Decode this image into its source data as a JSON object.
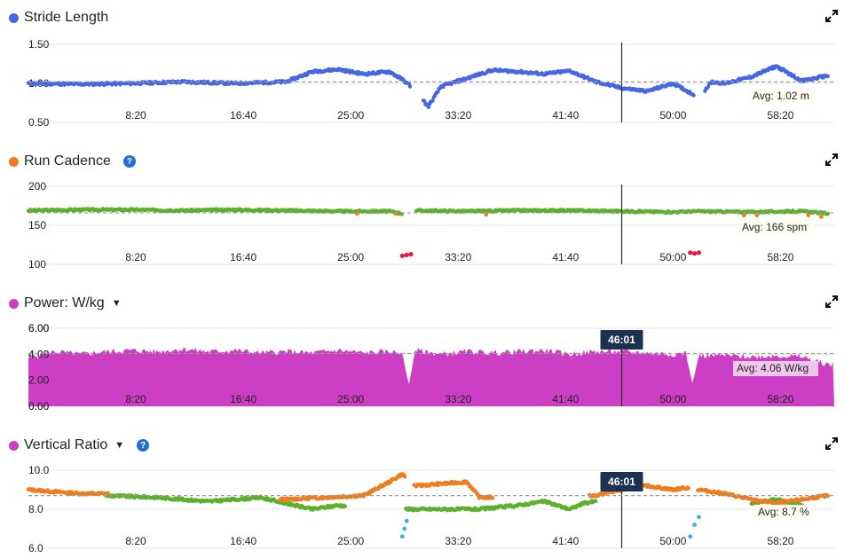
{
  "colors": {
    "stride": "#4666e6",
    "cadence_green": "#5bb02c",
    "cadence_orange": "#ee7d1f",
    "cadence_red": "#e8183d",
    "power": "#cc3ec3",
    "ratio_green": "#5bb02c",
    "ratio_orange": "#ee7d1f",
    "ratio_blue": "#35b3ee",
    "grid": "#e4e4e4",
    "avgline": "#9c9c9c",
    "cursor": "#2b2b2b",
    "marker_bg": "#1d3150",
    "help": "#1f6fd1"
  },
  "x_ticks": [
    "8:20",
    "16:40",
    "25:00",
    "33:20",
    "41:40",
    "50:00",
    "58:20"
  ],
  "cursor_time": "46:01",
  "panels": [
    {
      "id": "stride",
      "title": "Stride Length",
      "has_help": false,
      "has_dropdown": false,
      "expand_icon": "expand-icon",
      "y_ticks": [
        "1.50",
        "1.00",
        "0.50"
      ],
      "avg_label": "Avg: 1.02 m",
      "show_cursor_label": false
    },
    {
      "id": "cadence",
      "title": "Run Cadence",
      "has_help": true,
      "has_dropdown": false,
      "expand_icon": "expand-icon",
      "y_ticks": [
        "200",
        "150",
        "100"
      ],
      "avg_label": "Avg: 166 spm",
      "show_cursor_label": false
    },
    {
      "id": "power",
      "title": "Power: W/kg",
      "has_help": false,
      "has_dropdown": true,
      "expand_icon": "expand-icon",
      "y_ticks": [
        "6.00",
        "4.00",
        "2.00",
        "0.00"
      ],
      "avg_label": "Avg: 4.06 W/kg",
      "show_cursor_label": true
    },
    {
      "id": "ratio",
      "title": "Vertical Ratio",
      "has_help": true,
      "has_dropdown": true,
      "expand_icon": "expand-icon",
      "y_ticks": [
        "10.0",
        "8.0",
        "6.0"
      ],
      "avg_label": "Avg: 8.7 %",
      "show_cursor_label": true
    }
  ],
  "chart_data": [
    {
      "type": "scatter",
      "title": "Stride Length",
      "unit": "m",
      "x_unit": "time (mm:ss)",
      "ylim": [
        0.5,
        1.5
      ],
      "avg": 1.02,
      "series": [
        {
          "color": "#4666e6",
          "x_min": [
            0,
            4,
            8,
            12,
            16,
            20,
            22,
            24,
            26,
            28,
            29,
            30,
            31,
            32,
            36,
            38,
            40,
            42,
            44,
            46,
            48,
            50,
            52,
            53,
            54,
            56,
            58,
            60,
            62
          ],
          "x": [
            "0:00",
            "4:00",
            "8:00",
            "12:00",
            "16:00",
            "20:00",
            "22:00",
            "24:00",
            "26:00",
            "28:00",
            "29:00",
            "30:00",
            "31:00",
            "32:00",
            "36:00",
            "38:00",
            "40:00",
            "42:00",
            "44:00",
            "46:00",
            "48:00",
            "50:00",
            "52:00",
            "53:00",
            "54:00",
            "56:00",
            "58:00",
            "60:00",
            "62:00"
          ],
          "y": [
            1.0,
            0.99,
            1.0,
            1.02,
            1.0,
            1.02,
            1.15,
            1.18,
            1.12,
            1.15,
            1.05,
            0.92,
            0.7,
            0.96,
            1.17,
            1.15,
            1.12,
            1.16,
            1.02,
            0.94,
            0.9,
            1.0,
            0.82,
            1.02,
            1.0,
            1.08,
            1.22,
            1.03,
            1.1
          ]
        }
      ],
      "avg_label": "Avg: 1.02 m"
    },
    {
      "type": "scatter",
      "title": "Run Cadence",
      "unit": "spm",
      "ylim": [
        100,
        200
      ],
      "avg": 166,
      "series": [
        {
          "color": "#5bb02c",
          "x": [
            "0:00",
            "4:00",
            "8:00",
            "12:00",
            "16:00",
            "20:00",
            "24:00",
            "28:00",
            "29:00",
            "30:00",
            "34:00",
            "38:00",
            "42:00",
            "46:00",
            "50:00",
            "52:00",
            "56:00",
            "60:00",
            "62:00"
          ],
          "y": [
            169,
            170,
            170,
            169,
            170,
            169,
            168,
            168,
            165,
            169,
            168,
            169,
            169,
            168,
            167,
            168,
            167,
            168,
            165
          ]
        },
        {
          "color": "#e8183d",
          "x": [
            "29:00",
            "29:20",
            "29:40",
            "51:20",
            "51:40",
            "52:00"
          ],
          "y": [
            111,
            112,
            113,
            115,
            114,
            115
          ]
        }
      ],
      "avg_label": "Avg: 166 spm"
    },
    {
      "type": "area",
      "title": "Power: W/kg",
      "unit": "W/kg",
      "ylim": [
        0,
        6
      ],
      "avg": 4.06,
      "series": [
        {
          "color": "#cc3ec3",
          "x": [
            "0:00",
            "2:00",
            "4:00",
            "6:00",
            "8:00",
            "10:00",
            "12:00",
            "14:00",
            "16:00",
            "18:00",
            "20:00",
            "22:00",
            "24:00",
            "26:00",
            "28:00",
            "29:00",
            "29:30",
            "30:00",
            "32:00",
            "34:00",
            "36:00",
            "38:00",
            "40:00",
            "42:00",
            "44:00",
            "46:00",
            "48:00",
            "50:00",
            "51:00",
            "51:30",
            "52:00",
            "54:00",
            "56:00",
            "58:00",
            "60:00",
            "62:00"
          ],
          "y": [
            3.7,
            4.2,
            4.0,
            4.2,
            4.3,
            4.2,
            4.4,
            4.2,
            4.3,
            4.1,
            4.2,
            4.1,
            4.3,
            4.1,
            4.2,
            4.1,
            1.6,
            4.3,
            4.0,
            4.2,
            4.1,
            4.2,
            4.3,
            4.0,
            4.2,
            4.2,
            4.1,
            4.0,
            4.1,
            1.7,
            3.9,
            3.9,
            3.8,
            3.9,
            3.8,
            3.2
          ]
        }
      ],
      "avg_label": "Avg: 4.06 W/kg"
    },
    {
      "type": "scatter",
      "title": "Vertical Ratio",
      "unit": "%",
      "ylim": [
        6,
        10
      ],
      "avg": 8.7,
      "series": [
        {
          "color": "#ee7d1f",
          "x": [
            "0:00",
            "4:00",
            "6:00",
            "20:00",
            "26:00",
            "28:00",
            "29:00",
            "30:00",
            "34:00",
            "35:00",
            "44:00",
            "46:00",
            "48:00",
            "50:00",
            "51:00",
            "52:00",
            "54:00",
            "56:00",
            "58:00",
            "62:00"
          ],
          "y": [
            9.0,
            8.8,
            8.8,
            8.5,
            8.7,
            9.4,
            9.8,
            9.2,
            9.4,
            8.6,
            8.7,
            9.0,
            9.2,
            9.0,
            9.1,
            9.0,
            8.8,
            8.5,
            8.3,
            8.7
          ]
        },
        {
          "color": "#5bb02c",
          "x": [
            "6:00",
            "10:00",
            "14:00",
            "18:00",
            "20:00",
            "22:00",
            "24:00",
            "29:00",
            "35:00",
            "38:00",
            "40:00",
            "42:00",
            "43:00",
            "44:00",
            "56:00",
            "58:00",
            "60:00"
          ],
          "y": [
            8.7,
            8.6,
            8.4,
            8.6,
            8.3,
            8.0,
            8.2,
            8.0,
            8.0,
            8.2,
            8.4,
            8.0,
            8.3,
            8.4,
            8.3,
            8.5,
            8.2
          ]
        },
        {
          "color": "#35b3ee",
          "x": [
            "29:00",
            "29:10",
            "29:20",
            "51:20",
            "51:40",
            "52:00"
          ],
          "y": [
            6.6,
            7.0,
            7.4,
            6.6,
            7.2,
            7.6
          ]
        }
      ],
      "avg_label": "Avg: 8.7 %"
    }
  ]
}
